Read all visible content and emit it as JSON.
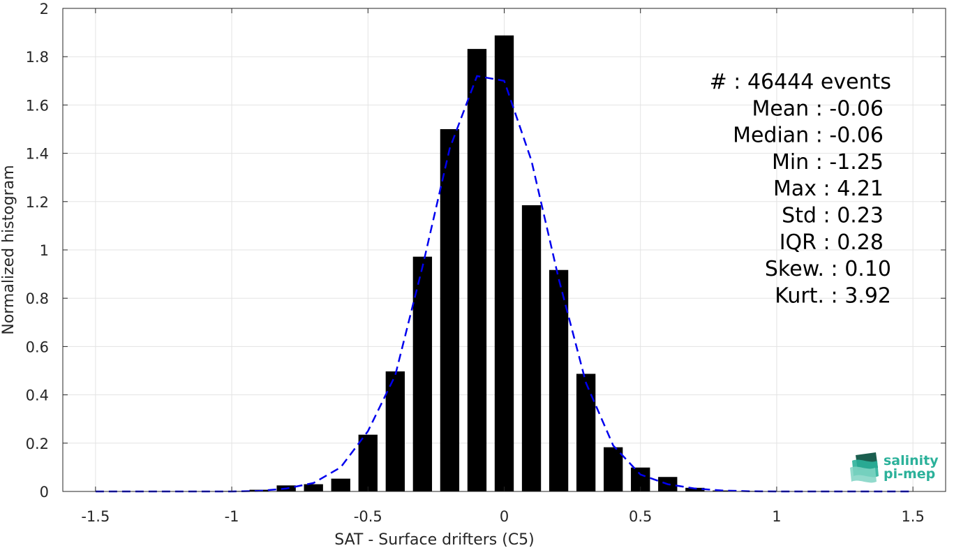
{
  "chart_data": {
    "type": "bar",
    "xlabel": "SAT - Surface drifters (C5)",
    "ylabel": "Normalized histogram",
    "xlim": [
      -1.62,
      1.62
    ],
    "ylim": [
      0,
      2
    ],
    "xticks": [
      -1.5,
      -1,
      -0.5,
      0,
      0.5,
      1,
      1.5
    ],
    "xtick_labels": [
      "-1.5",
      "-1",
      "-0.5",
      "0",
      "0.5",
      "1",
      "1.5"
    ],
    "yticks": [
      0,
      0.2,
      0.4,
      0.6,
      0.8,
      1,
      1.2,
      1.4,
      1.6,
      1.8,
      2
    ],
    "ytick_labels": [
      "0",
      "0.2",
      "0.4",
      "0.6",
      "0.8",
      "1",
      "1.2",
      "1.4",
      "1.6",
      "1.8",
      "2"
    ],
    "grid": true,
    "bar_width": 0.07,
    "bars": {
      "x": [
        -1.5,
        -1.4,
        -1.3,
        -1.2,
        -1.1,
        -1.0,
        -0.9,
        -0.8,
        -0.7,
        -0.6,
        -0.5,
        -0.4,
        -0.3,
        -0.2,
        -0.1,
        0.0,
        0.1,
        0.2,
        0.3,
        0.4,
        0.5,
        0.6,
        0.7,
        0.8,
        0.9,
        1.0,
        1.1,
        1.2,
        1.3,
        1.4,
        1.5
      ],
      "values": [
        0,
        0,
        0,
        0,
        0,
        0.002,
        0.007,
        0.025,
        0.03,
        0.053,
        0.235,
        0.497,
        0.972,
        1.5,
        1.832,
        1.888,
        1.185,
        0.917,
        0.487,
        0.183,
        0.099,
        0.06,
        0.015,
        0.004,
        0.002,
        0.001,
        0,
        0,
        0,
        0,
        0
      ],
      "color": "#000000"
    },
    "series": [
      {
        "type": "line",
        "style": "dashed",
        "color": "#0000ee",
        "x": [
          -1.5,
          -1.4,
          -1.3,
          -1.2,
          -1.1,
          -1.0,
          -0.9,
          -0.8,
          -0.7,
          -0.6,
          -0.55,
          -0.5,
          -0.4,
          -0.3,
          -0.2,
          -0.1,
          0.0,
          0.1,
          0.2,
          0.3,
          0.4,
          0.5,
          0.6,
          0.7,
          0.8,
          0.9,
          1.0,
          1.1,
          1.2,
          1.3,
          1.4,
          1.5
        ],
        "values": [
          0,
          0,
          0,
          0,
          0,
          0,
          0.002,
          0.012,
          0.035,
          0.1,
          0.175,
          0.25,
          0.48,
          0.93,
          1.42,
          1.72,
          1.7,
          1.37,
          0.88,
          0.45,
          0.19,
          0.07,
          0.03,
          0.012,
          0.004,
          0.001,
          0,
          0,
          0,
          0,
          0,
          0
        ]
      }
    ],
    "annotation_lines": [
      "#  : 46444 events",
      "Mean : -0.06",
      "Median : -0.06",
      "Min : -1.25",
      "Max : 4.21",
      "Std : 0.23",
      "IQR : 0.28",
      "Skew. : 0.10",
      "Kurt. : 3.92"
    ],
    "logo": {
      "line1": "salinity",
      "line2": "pi-mep",
      "color_light": "#2bb19a",
      "color_dark": "#1b5e4f"
    }
  }
}
